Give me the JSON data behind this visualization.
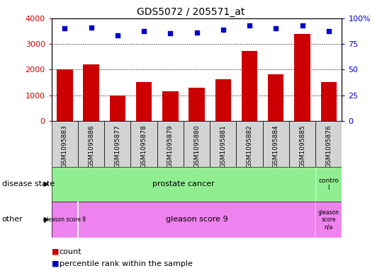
{
  "title": "GDS5072 / 205571_at",
  "samples": [
    "GSM1095883",
    "GSM1095886",
    "GSM1095877",
    "GSM1095878",
    "GSM1095879",
    "GSM1095880",
    "GSM1095881",
    "GSM1095882",
    "GSM1095884",
    "GSM1095885",
    "GSM1095876"
  ],
  "counts": [
    2000,
    2200,
    1000,
    1500,
    1150,
    1280,
    1620,
    2720,
    1820,
    3380,
    1500
  ],
  "percentile_ranks": [
    90,
    91,
    83,
    87.5,
    85,
    86,
    89,
    93,
    90,
    93,
    87.5
  ],
  "bar_color": "#cc0000",
  "dot_color": "#0000cc",
  "ylim_left": [
    0,
    4000
  ],
  "ylim_right": [
    0,
    100
  ],
  "yticks_left": [
    0,
    1000,
    2000,
    3000,
    4000
  ],
  "yticks_right": [
    0,
    25,
    50,
    75,
    100
  ],
  "ytick_labels_left": [
    "0",
    "1000",
    "2000",
    "3000",
    "4000"
  ],
  "ytick_labels_right": [
    "0",
    "25",
    "50",
    "75",
    "100%"
  ],
  "tick_label_color_left": "#cc0000",
  "tick_label_color_right": "#0000cc",
  "bar_bg_color": "#d3d3d3",
  "legend_count_color": "#cc0000",
  "legend_percentile_color": "#0000cc",
  "background_color": "#ffffff"
}
